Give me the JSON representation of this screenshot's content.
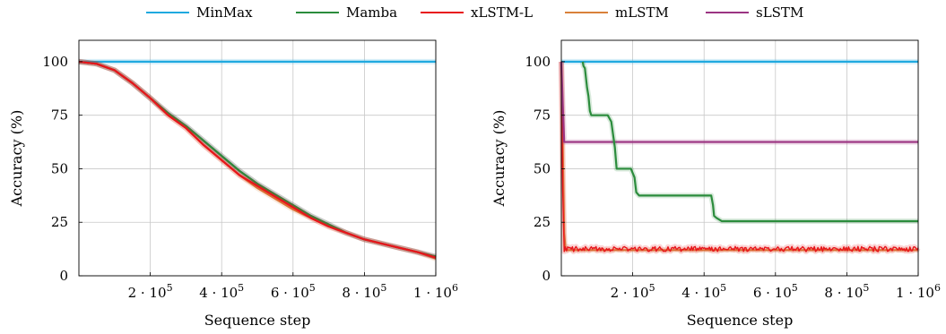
{
  "legend": [
    {
      "name": "MinMax",
      "color": "#1fa9df"
    },
    {
      "name": "Mamba",
      "color": "#2b8c3c"
    },
    {
      "name": "xLSTM-L",
      "color": "#e8151b"
    },
    {
      "name": "mLSTM",
      "color": "#d9813a"
    },
    {
      "name": "sLSTM",
      "color": "#9b3482"
    }
  ],
  "chart_data": [
    {
      "type": "line",
      "xlabel": "Sequence step",
      "ylabel": "Accuracy (%)",
      "xlim": [
        0,
        1000000
      ],
      "ylim": [
        0,
        110
      ],
      "x_ticks": [
        {
          "value": 200000,
          "mantissa": "2 · 10",
          "exp": "5"
        },
        {
          "value": 400000,
          "mantissa": "4 · 10",
          "exp": "5"
        },
        {
          "value": 600000,
          "mantissa": "6 · 10",
          "exp": "5"
        },
        {
          "value": 800000,
          "mantissa": "8 · 10",
          "exp": "5"
        },
        {
          "value": 1000000,
          "mantissa": "1 · 10",
          "exp": "6"
        }
      ],
      "y_ticks": [
        "0",
        "25",
        "50",
        "75",
        "100"
      ],
      "grid": true,
      "series": [
        {
          "name": "MinMax",
          "x": [
            0,
            1000000
          ],
          "y": [
            100,
            100
          ]
        },
        {
          "name": "mLSTM",
          "x": [
            0,
            50000,
            100000,
            150000,
            200000,
            250000,
            300000,
            350000,
            400000,
            450000,
            500000,
            550000,
            600000,
            650000,
            700000,
            750000,
            800000,
            850000,
            900000,
            950000,
            1000000
          ],
          "y": [
            100,
            99,
            96,
            90,
            83,
            75,
            69,
            61,
            54,
            47,
            41,
            36,
            31,
            27,
            23,
            20,
            17,
            15,
            13,
            11,
            8
          ]
        },
        {
          "name": "sLSTM",
          "x": [
            0,
            50000,
            100000,
            150000,
            200000,
            250000,
            300000,
            350000,
            400000,
            450000,
            500000,
            550000,
            600000,
            650000,
            700000,
            750000,
            800000,
            850000,
            900000,
            950000,
            1000000
          ],
          "y": [
            100,
            99,
            96,
            90,
            83,
            76,
            70,
            63,
            56,
            49,
            43,
            38,
            33,
            28,
            24,
            20,
            17,
            15,
            13,
            11,
            9
          ]
        },
        {
          "name": "Mamba",
          "x": [
            0,
            50000,
            100000,
            150000,
            200000,
            250000,
            300000,
            350000,
            400000,
            450000,
            500000,
            550000,
            600000,
            650000,
            700000,
            750000,
            800000,
            850000,
            900000,
            950000,
            1000000
          ],
          "y": [
            100,
            99,
            96,
            90,
            83,
            76,
            70,
            63,
            56,
            49,
            43,
            38,
            33,
            28,
            24,
            20,
            17,
            15,
            13,
            11,
            9
          ]
        },
        {
          "name": "xLSTM-L",
          "x": [
            0,
            50000,
            100000,
            150000,
            200000,
            250000,
            300000,
            350000,
            400000,
            450000,
            500000,
            550000,
            600000,
            650000,
            700000,
            750000,
            800000,
            850000,
            900000,
            950000,
            1000000
          ],
          "y": [
            100,
            99,
            96,
            90,
            83,
            75,
            69,
            61,
            54,
            47,
            42,
            37,
            32,
            27,
            23,
            20,
            17,
            15,
            13,
            11,
            8.5
          ]
        }
      ]
    },
    {
      "type": "line",
      "xlabel": "Sequence step",
      "ylabel": "Accuracy (%)",
      "xlim": [
        0,
        1000000
      ],
      "ylim": [
        0,
        110
      ],
      "x_ticks": [
        {
          "value": 200000,
          "mantissa": "2 · 10",
          "exp": "5"
        },
        {
          "value": 400000,
          "mantissa": "4 · 10",
          "exp": "5"
        },
        {
          "value": 600000,
          "mantissa": "6 · 10",
          "exp": "5"
        },
        {
          "value": 800000,
          "mantissa": "8 · 10",
          "exp": "5"
        },
        {
          "value": 1000000,
          "mantissa": "1 · 10",
          "exp": "6"
        }
      ],
      "y_ticks": [
        "0",
        "25",
        "50",
        "75",
        "100"
      ],
      "grid": true,
      "series": [
        {
          "name": "MinMax",
          "x": [
            0,
            1000000
          ],
          "y": [
            100,
            100
          ]
        },
        {
          "name": "mLSTM",
          "x": [
            0,
            4000,
            8000,
            12000,
            1000000
          ],
          "y": [
            100,
            60,
            20,
            12,
            12
          ]
        },
        {
          "name": "xLSTM-L",
          "x": [
            0,
            4000,
            8000,
            1000000
          ],
          "y": [
            100,
            40,
            12.5,
            12.5
          ],
          "noise": 1.2
        },
        {
          "name": "sLSTM",
          "x": [
            0,
            4000,
            8000,
            1000000
          ],
          "y": [
            100,
            80,
            62.5,
            62.5
          ]
        },
        {
          "name": "Mamba",
          "x": [
            60000,
            62000,
            66000,
            72000,
            76000,
            80000,
            84000,
            130000,
            140000,
            150000,
            155000,
            165000,
            195000,
            205000,
            210000,
            218000,
            420000,
            425000,
            428000,
            435000,
            450000,
            1000000
          ],
          "y": [
            100,
            98,
            97,
            88,
            84,
            77,
            75,
            75,
            72,
            60,
            50,
            50,
            50,
            46,
            39,
            37.5,
            37.5,
            33,
            28,
            27,
            25.5,
            25.5
          ]
        }
      ]
    }
  ]
}
